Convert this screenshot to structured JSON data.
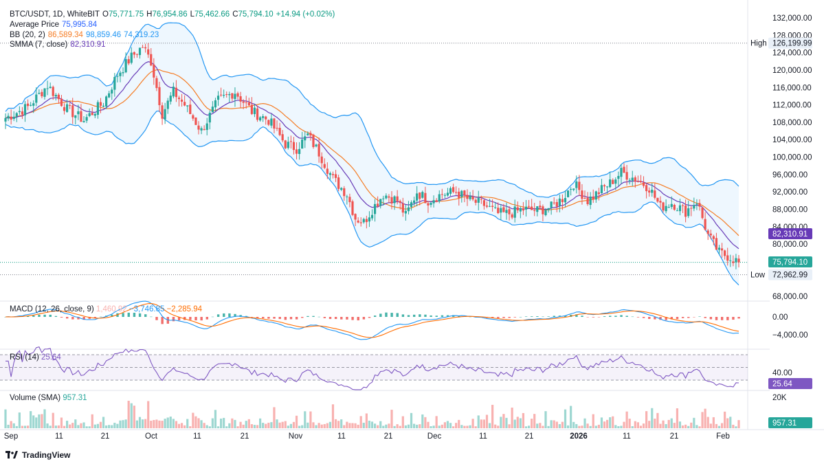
{
  "header": {
    "symbol": "BTC/USDT, 1D, WhiteBIT",
    "o_label": "O",
    "o_value": "75,771.75",
    "h_label": "H",
    "h_value": "76,954.86",
    "l_label": "L",
    "l_value": "75,462.66",
    "c_label": "C",
    "c_value": "75,794.10",
    "change": "+14.94 (+0.02%)"
  },
  "indicators": {
    "avg_label": "Average Price",
    "avg_value": "75,995.84",
    "bb_label": "BB (20, 2)",
    "bb_basis": "86,589.34",
    "bb_upper": "98,859.46",
    "bb_lower": "74,319.23",
    "smma_label": "SMMA (7, close)",
    "smma_value": "82,310.91",
    "macd_label": "MACD (12, 26, close, 9)",
    "macd_hist": "1,460.92",
    "macd_line": "−3,746.85",
    "macd_signal": "−2,285.94",
    "rsi_label": "RSI (14)",
    "rsi_value": "25.64",
    "vol_label": "Volume (SMA)",
    "vol_value": "957.31"
  },
  "colors": {
    "up": "#26a69a",
    "down": "#ef5350",
    "bb_basis": "#f57c24",
    "bb_band": "#2196f3",
    "smma": "#673ab7",
    "rsi": "#7e57c2"
  },
  "price_axis": [
    "132,000.00",
    "128,000.00",
    "124,000.00",
    "120,000.00",
    "116,000.00",
    "112,000.00",
    "108,000.00",
    "104,000.00",
    "100,000.00",
    "96,000.00",
    "92,000.00",
    "88,000.00",
    "84,000.00",
    "80,000.00",
    "68,000.00"
  ],
  "tags": {
    "high_label": "High",
    "high_value": "126,199.99",
    "low_label": "Low",
    "low_value": "72,962.99",
    "smma_tag": "82,310.91",
    "close_tag": "75,794.10",
    "macd_zero": "0.00",
    "macd_neg": "−4,000.00",
    "rsi_40": "40.00",
    "rsi_tag": "25.64",
    "vol_20k": "20K",
    "vol_tag": "957.31"
  },
  "x_axis": [
    "Sep",
    "11",
    "21",
    "Oct",
    "11",
    "21",
    "Nov",
    "11",
    "21",
    "Dec",
    "11",
    "21",
    "2026",
    "11",
    "21",
    "Feb"
  ],
  "branding": "TradingView",
  "chart_data": {
    "type": "candlestick",
    "title": "BTC/USDT, 1D, WhiteBIT",
    "price_range": [
      66000,
      134000
    ],
    "high": 126199.99,
    "low": 72962.99,
    "last": 75794.1,
    "close_series_anchors": [
      [
        0,
        109000
      ],
      [
        8,
        111500
      ],
      [
        15,
        116500
      ],
      [
        22,
        111000
      ],
      [
        28,
        108500
      ],
      [
        35,
        112500
      ],
      [
        40,
        119000
      ],
      [
        45,
        123000
      ],
      [
        49,
        125500
      ],
      [
        52,
        122000
      ],
      [
        56,
        110000
      ],
      [
        60,
        115000
      ],
      [
        64,
        112000
      ],
      [
        70,
        106000
      ],
      [
        76,
        113000
      ],
      [
        82,
        115000
      ],
      [
        88,
        110500
      ],
      [
        94,
        108500
      ],
      [
        100,
        103000
      ],
      [
        104,
        102000
      ],
      [
        108,
        105000
      ],
      [
        112,
        101000
      ],
      [
        117,
        95000
      ],
      [
        122,
        91500
      ],
      [
        125,
        86000
      ],
      [
        128,
        85000
      ],
      [
        131,
        88000
      ],
      [
        135,
        91500
      ],
      [
        140,
        90000
      ],
      [
        143,
        86500
      ],
      [
        147,
        92000
      ],
      [
        151,
        90000
      ],
      [
        156,
        91500
      ],
      [
        161,
        92000
      ],
      [
        166,
        90000
      ],
      [
        171,
        89000
      ],
      [
        176,
        87000
      ],
      [
        180,
        87000
      ],
      [
        185,
        88000
      ],
      [
        190,
        87700
      ],
      [
        195,
        88500
      ],
      [
        199,
        90500
      ],
      [
        203,
        94000
      ],
      [
        208,
        90000
      ],
      [
        212,
        92000
      ],
      [
        216,
        94000
      ],
      [
        220,
        96500
      ],
      [
        225,
        95000
      ],
      [
        230,
        93000
      ],
      [
        234,
        88500
      ],
      [
        238,
        89500
      ],
      [
        243,
        87500
      ],
      [
        247,
        90000
      ],
      [
        251,
        82000
      ],
      [
        255,
        78000
      ],
      [
        259,
        77000
      ],
      [
        262,
        75794
      ]
    ],
    "bb": {
      "upper": 98859.46,
      "basis": 86589.34,
      "lower": 74319.23
    },
    "smma_last": 82310.91,
    "macd": {
      "hist": 1460.92,
      "macd": -3746.85,
      "signal": -2285.94
    },
    "rsi_last": 25.64,
    "rsi_levels": [
      70,
      50,
      30
    ],
    "volume_sma": 957.31
  }
}
